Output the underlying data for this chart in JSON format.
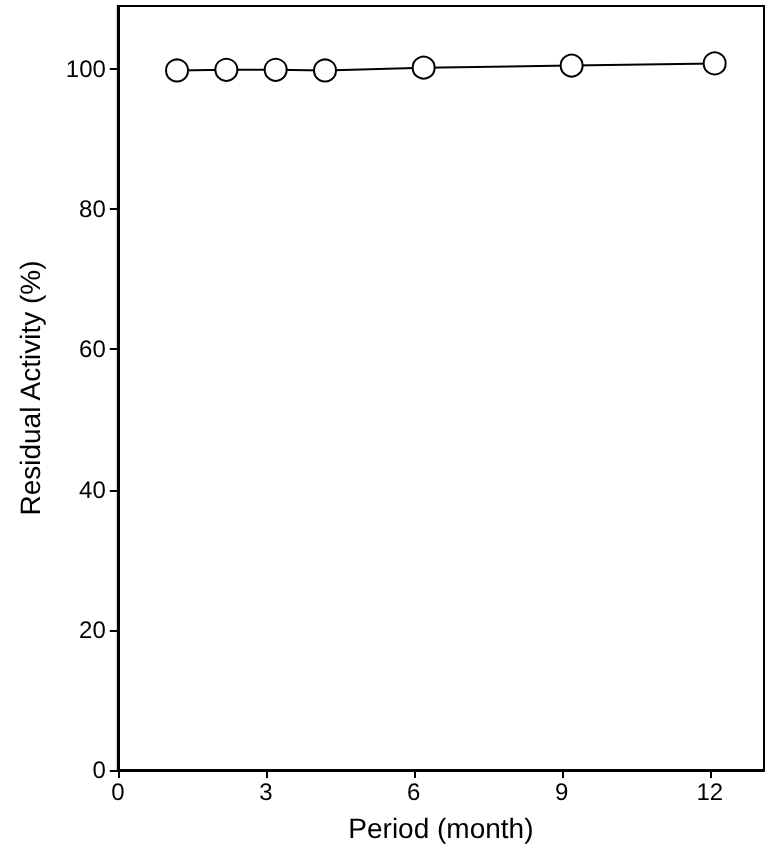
{
  "chart_data": {
    "type": "line",
    "xlabel": "Period (month)",
    "ylabel": "Residual Activity (%)",
    "x": [
      1.2,
      2.2,
      3.2,
      4.2,
      6.2,
      9.2,
      12.1
    ],
    "series": [
      {
        "color": "#000000",
        "values": [
          99.8,
          99.9,
          99.9,
          99.8,
          100.2,
          100.5,
          100.8
        ]
      }
    ],
    "xlim": [
      0,
      13.1
    ],
    "xticks": [
      0,
      3,
      6,
      9,
      12
    ],
    "ylim": [
      0,
      109
    ],
    "yticks": [
      0,
      20,
      40,
      60,
      80,
      100
    ],
    "grid": false,
    "marker": "circle",
    "line_style": "solid"
  }
}
